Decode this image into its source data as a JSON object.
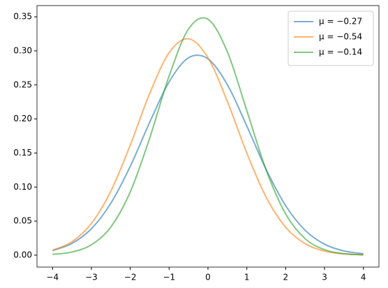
{
  "chart_data": {
    "type": "line",
    "x": [
      -4,
      -3.5,
      -3,
      -2.5,
      -2,
      -1.5,
      -1,
      -0.5,
      0,
      0.5,
      1,
      1.5,
      2,
      2.5,
      3,
      3.5,
      4
    ],
    "series": [
      {
        "name": "μ = −0.27",
        "color": "#1f77b4",
        "values": [
          0.0067,
          0.0173,
          0.0388,
          0.0762,
          0.1304,
          0.195,
          0.2544,
          0.2898,
          0.2882,
          0.2503,
          0.1897,
          0.1256,
          0.0726,
          0.0366,
          0.0161,
          0.0062,
          0.0021
        ]
      },
      {
        "name": "μ = −0.54",
        "color": "#ff7f0e",
        "values": [
          0.0071,
          0.0197,
          0.0466,
          0.0939,
          0.1616,
          0.2373,
          0.2973,
          0.3178,
          0.2899,
          0.2256,
          0.1498,
          0.0848,
          0.041,
          0.0169,
          0.006,
          0.0018,
          0.0005
        ]
      },
      {
        "name": "μ = −0.14",
        "color": "#2ca02c",
        "values": [
          0.0012,
          0.0046,
          0.0153,
          0.0414,
          0.0929,
          0.1719,
          0.263,
          0.3321,
          0.3464,
          0.2984,
          0.2122,
          0.1247,
          0.0605,
          0.0243,
          0.008,
          0.0022,
          0.0005
        ]
      }
    ],
    "xlim": [
      -4.4,
      4.4
    ],
    "xticks": [
      {
        "value": -4,
        "label": "−4"
      },
      {
        "value": -3,
        "label": "−3"
      },
      {
        "value": -2,
        "label": "−2"
      },
      {
        "value": -1,
        "label": "−1"
      },
      0,
      1,
      2,
      3,
      4
    ],
    "ylim": [
      -0.0175,
      0.3665
    ],
    "yticks": [
      {
        "value": 0,
        "label": "0.00"
      },
      {
        "value": 0.05,
        "label": "0.05"
      },
      {
        "value": 0.1,
        "label": "0.10"
      },
      {
        "value": 0.15,
        "label": "0.15"
      },
      {
        "value": 0.2,
        "label": "0.20"
      },
      {
        "value": 0.25,
        "label": "0.25"
      },
      {
        "value": 0.3,
        "label": "0.30"
      },
      {
        "value": 0.35,
        "label": "0.35"
      }
    ],
    "legend": "upper right",
    "grid": false
  }
}
